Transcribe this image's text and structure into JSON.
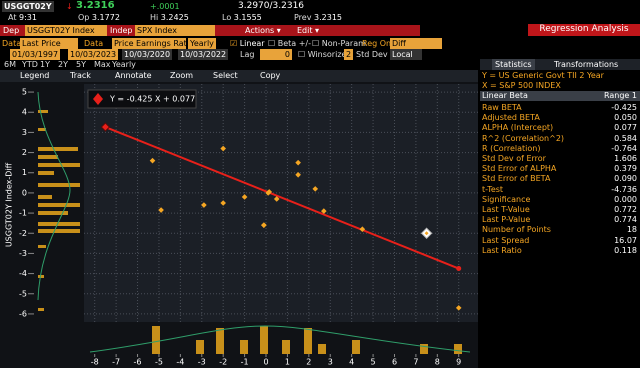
{
  "quote": {
    "ticker": "USGGT02Y",
    "arrow": "↓",
    "last": "3.2316",
    "change": "+.0001",
    "bid_ask": "3.2970/3.2316",
    "at_label": "At",
    "time": "9:31",
    "open_label": "Op",
    "open": "3.1772",
    "hi_label": "Hi",
    "high": "3.2425",
    "lo_label": "Lo",
    "low": "3.1555",
    "prev_label": "Prev",
    "prev": "3.2315"
  },
  "title": "Regression Analysis",
  "dep_bar": {
    "dep_label": "Dep",
    "dep": "USGGT02Y Index",
    "indep_label": "Indep",
    "indep": "SPX Index",
    "actions": "Actions ▾",
    "edit": "Edit ▾"
  },
  "data_bar": {
    "dep_data_label": "Data",
    "dep_data": "Last Price",
    "indep_data_label": "Data",
    "indep_data": "Price Earnings Rati",
    "period": "Yearly",
    "linear": "Linear",
    "beta": "Beta +/-",
    "non_param": "Non-Param",
    "reg_on": "Reg On",
    "reg_on_value": "Diff"
  },
  "range_bar": {
    "start": "01/03/1997",
    "end": "10/03/2023",
    "sub_start": "10/03/2020",
    "sub_end": "10/03/2022",
    "lag_label": "Lag",
    "lag": "0",
    "winsorize_label": "Winsorize",
    "winsorize": "2",
    "std_dev_label": "Std Dev",
    "std_dev": "Local"
  },
  "periods": [
    "6M",
    "YTD",
    "1Y",
    "2Y",
    "5Y",
    "Max",
    "Yearly"
  ],
  "toolbar": [
    "Legend",
    "Track",
    "Annotate",
    "Zoom",
    "Select",
    "Copy"
  ],
  "tabs": [
    "Statistics",
    "Transformations"
  ],
  "chart_data": {
    "type": "scatter",
    "y_label": "USGGT02Y Index-Diff",
    "legend": "Y = -0.425 X + 0.077",
    "x": [
      -5.3,
      -4.9,
      -2.9,
      -2.0,
      -2.0,
      -1.0,
      -0.1,
      0.1,
      0.15,
      0.5,
      1.5,
      1.5,
      2.3,
      2.7,
      4.5,
      9.0,
      -0.1
    ],
    "y": [
      1.6,
      -0.85,
      -0.6,
      2.2,
      -0.5,
      -0.2,
      -1.6,
      0.0,
      0.05,
      -0.3,
      1.5,
      0.9,
      0.2,
      -0.9,
      -1.8,
      -5.7,
      -1.6
    ],
    "last_point": {
      "x": 7.5,
      "y": -2.0
    },
    "fit": {
      "slope": -0.425,
      "intercept": 0.077,
      "x_range": [
        -7.5,
        9
      ]
    },
    "point_color": "#f5a623",
    "line_color": "#e8201a",
    "xlim": [
      -8.5,
      9.9
    ],
    "ylim": [
      -6.4,
      5.4
    ],
    "xticks": [
      -8,
      -7,
      -6,
      -5,
      -4,
      -3,
      -2,
      -1,
      0,
      1,
      2,
      3,
      4,
      5,
      6,
      7,
      8,
      9
    ],
    "yticks": [
      -6,
      -5,
      -4,
      -3,
      -2,
      -1,
      0,
      1,
      2,
      3,
      4,
      5
    ],
    "grid": true
  },
  "statistics": {
    "y_line": "Y = US Generic Govt TII 2 Year",
    "x_line": "X = S&P 500 INDEX",
    "header": [
      "Linear Beta",
      "Range 1"
    ],
    "rows": [
      [
        "Raw BETA",
        "-0.425"
      ],
      [
        "Adjusted BETA",
        "0.050"
      ],
      [
        "ALPHA (Intercept)",
        "0.077"
      ],
      [
        "R^2 (Correlation^2)",
        "0.584"
      ],
      [
        "R (Correlation)",
        "-0.764"
      ],
      [
        "Std Dev of Error",
        "1.606"
      ],
      [
        "Std Error of ALPHA",
        "0.379"
      ],
      [
        "Std Error of BETA",
        "0.090"
      ],
      [
        "t-Test",
        "-4.736"
      ],
      [
        "Significance",
        "0.000"
      ],
      [
        "Last T-Value",
        "0.772"
      ],
      [
        "Last P-Value",
        "0.774"
      ],
      [
        "Number of Points",
        "18"
      ],
      [
        "Last Spread",
        "16.07"
      ],
      [
        "Last Ratio",
        "0.118"
      ]
    ]
  }
}
